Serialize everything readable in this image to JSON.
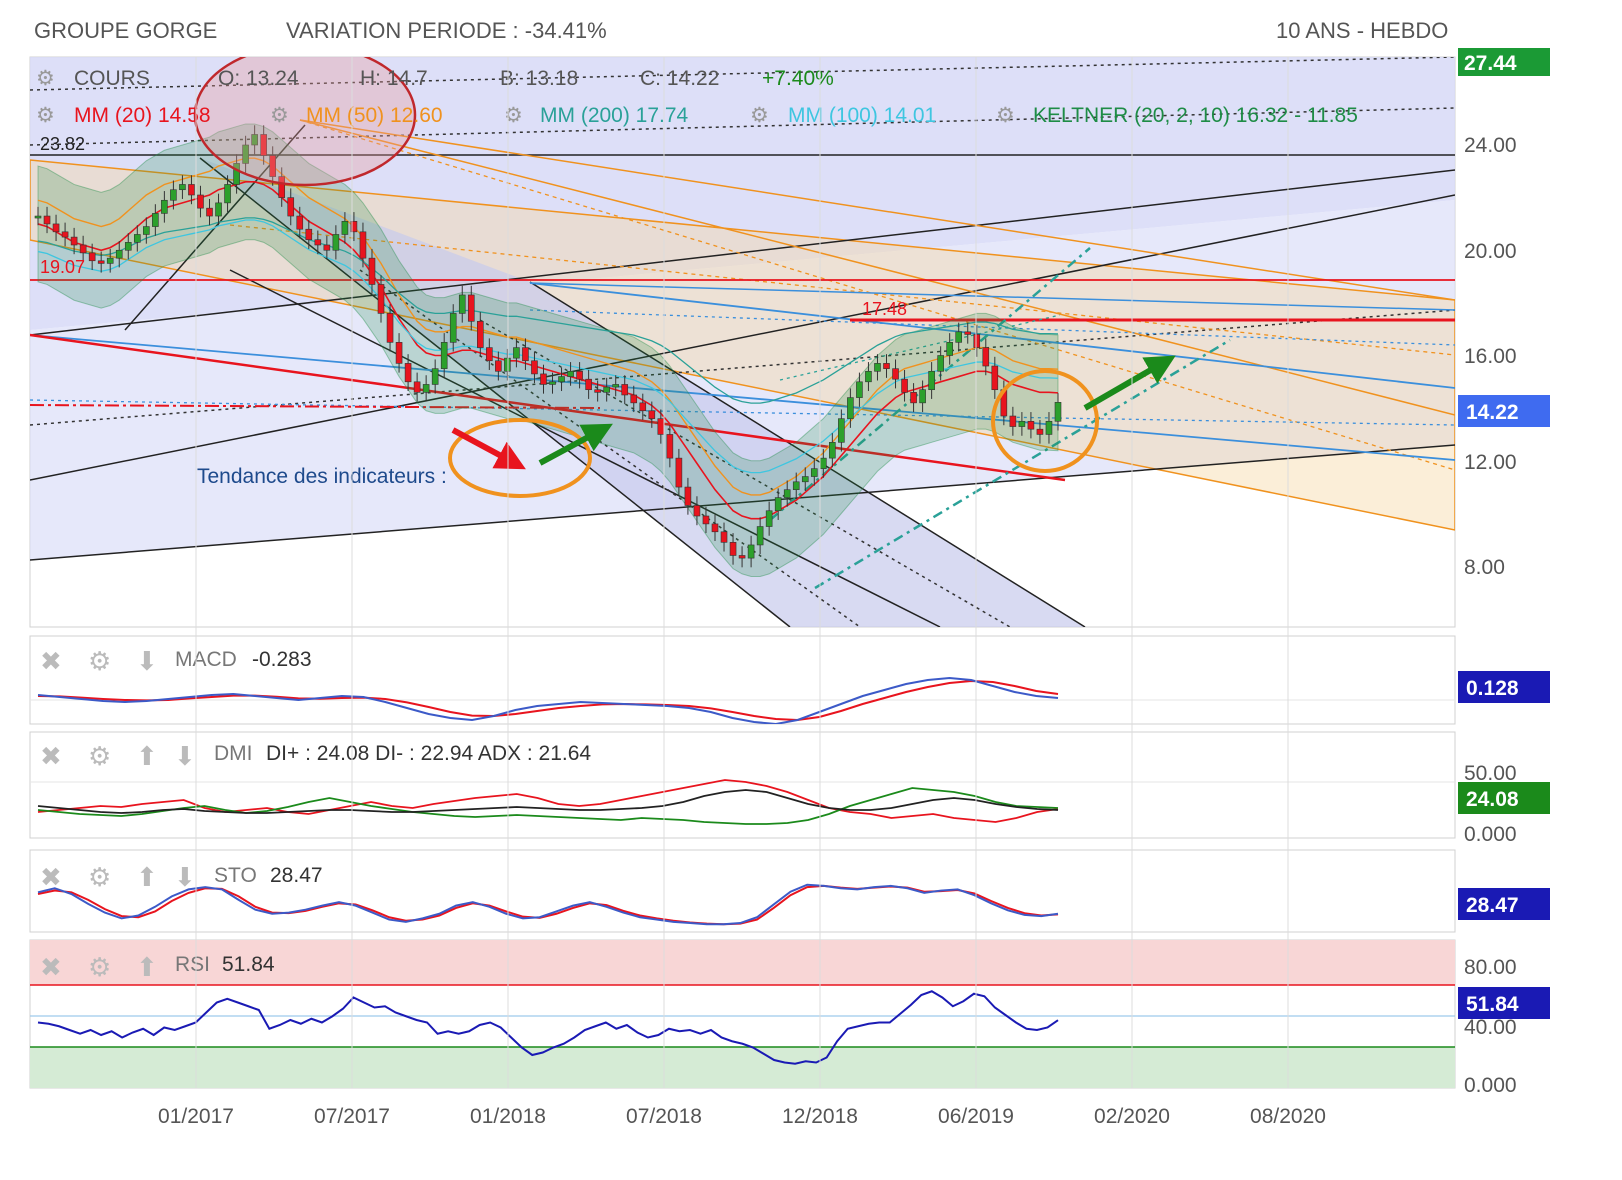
{
  "header": {
    "name": "GROUPE GORGE",
    "variation": "VARIATION PERIODE : -34.41%",
    "period": "10 ANS - HEBDO"
  },
  "colors": {
    "red": "#e8141e",
    "orange": "#f0921e",
    "teal": "#2aa198",
    "cyan": "#3ec6e0",
    "blue": "#3c5ac8",
    "green": "#1b8a1b",
    "keltner": "#1e8c46",
    "bgchannel": "#d7d9f7",
    "navy": "#1a1ab4"
  },
  "icons": [
    "gear-icon",
    "close-icon",
    "arrow-up-icon",
    "arrow-down-icon"
  ],
  "chart_data": {
    "type": "candlestick",
    "x_ticks": [
      "01/2017",
      "07/2017",
      "01/2018",
      "07/2018",
      "12/2018",
      "06/2019",
      "02/2020",
      "08/2020"
    ],
    "price_ticks": [
      "24.00",
      "20.00",
      "16.00",
      "12.00",
      "8.00"
    ],
    "price_axis_top": "27.44",
    "current_price": "14.22",
    "legend": {
      "cours": "COURS",
      "open": "O: 13.24",
      "high": "H: 14.7",
      "low": "B: 13.18",
      "close": "C: 14.22",
      "change": "+7.40%",
      "mm20": "MM (20) 14.58",
      "mm50": "MM (50) 12.60",
      "mm200": "MM (200) 17.74",
      "mm100": "MM (100) 14.01",
      "keltner": "KELTNER (20, 2, 10) 16.32 - 11.85"
    },
    "annotations": {
      "high_label": "23.82",
      "left_label": "19.07",
      "resistance": "17.48",
      "trend_text": "Tendance des indicateurs :"
    },
    "close_series": [
      21.3,
      21.0,
      20.7,
      20.5,
      20.2,
      19.9,
      19.6,
      19.5,
      19.7,
      20.0,
      20.3,
      20.6,
      20.9,
      21.4,
      21.9,
      22.3,
      22.5,
      22.1,
      21.6,
      21.3,
      21.8,
      22.5,
      23.3,
      24.0,
      24.4,
      23.6,
      22.8,
      22.0,
      21.3,
      20.8,
      20.4,
      20.2,
      20.0,
      20.6,
      21.1,
      20.7,
      19.7,
      18.7,
      17.6,
      16.5,
      15.7,
      15.0,
      14.6,
      14.9,
      15.5,
      16.5,
      17.6,
      18.3,
      17.3,
      16.3,
      15.8,
      15.4,
      15.9,
      16.3,
      15.8,
      15.3,
      14.9,
      15.0,
      15.2,
      15.4,
      15.1,
      14.7,
      14.6,
      14.8,
      14.9,
      14.5,
      14.2,
      13.9,
      13.6,
      13.0,
      12.1,
      11.0,
      10.3,
      9.9,
      9.6,
      9.3,
      8.9,
      8.4,
      8.3,
      8.8,
      9.5,
      10.1,
      10.6,
      10.9,
      11.2,
      11.4,
      11.7,
      12.1,
      12.7,
      13.6,
      14.4,
      15.0,
      15.4,
      15.7,
      15.5,
      15.1,
      14.6,
      14.2,
      14.7,
      15.4,
      16.0,
      16.5,
      16.9,
      16.8,
      16.3,
      15.6,
      14.7,
      13.7,
      13.3,
      13.5,
      13.2,
      13.0,
      13.5,
      14.22
    ],
    "mm20_series": [
      21.0,
      20.9,
      20.7,
      20.5,
      20.3,
      20.2,
      20.1,
      20.0,
      20.1,
      20.3,
      20.6,
      20.9,
      21.2,
      21.4,
      21.6,
      21.7,
      21.8,
      21.9,
      22.0,
      22.1,
      22.3,
      22.4,
      22.5,
      22.6,
      22.6,
      22.5,
      22.3,
      22.0,
      21.7,
      21.4,
      21.1,
      20.9,
      20.7,
      20.5,
      20.3,
      20.0,
      19.6,
      19.1,
      18.6,
      18.0,
      17.4,
      16.9,
      16.4,
      16.1,
      16.0,
      16.0,
      16.1,
      16.2,
      16.2,
      16.1,
      16.0,
      15.9,
      15.8,
      15.8,
      15.7,
      15.6,
      15.5,
      15.4,
      15.3,
      15.2,
      15.1,
      15.0,
      14.9,
      14.8,
      14.7,
      14.6,
      14.5,
      14.3,
      14.1,
      13.8,
      13.4,
      12.9,
      12.4,
      11.9,
      11.4,
      10.9,
      10.5,
      10.1,
      9.9,
      9.8,
      9.8,
      9.9,
      10.1,
      10.3,
      10.5,
      10.8,
      11.1,
      11.4,
      11.8,
      12.2,
      12.6,
      13.0,
      13.4,
      13.8,
      14.1,
      14.4,
      14.6,
      14.7,
      14.8,
      14.9,
      15.0,
      15.1,
      15.2,
      15.3,
      15.4,
      15.4,
      15.3,
      15.1,
      14.9,
      14.8,
      14.7,
      14.6,
      14.6,
      14.58
    ],
    "macd": {
      "name": "MACD",
      "value": "-0.283",
      "badge": "0.128",
      "macd_series": [
        0.25,
        0.15,
        0.05,
        -0.05,
        -0.1,
        -0.05,
        0.05,
        0.15,
        0.25,
        0.3,
        0.2,
        0.1,
        0.0,
        0.1,
        0.2,
        0.15,
        -0.1,
        -0.4,
        -0.7,
        -0.9,
        -1.0,
        -0.8,
        -0.5,
        -0.3,
        -0.2,
        -0.1,
        -0.15,
        -0.2,
        -0.25,
        -0.3,
        -0.4,
        -0.6,
        -0.9,
        -1.1,
        -1.2,
        -1.0,
        -0.6,
        -0.2,
        0.2,
        0.5,
        0.8,
        1.0,
        1.1,
        1.0,
        0.7,
        0.4,
        0.2,
        0.1
      ],
      "signal_series": [
        0.2,
        0.18,
        0.12,
        0.05,
        0.0,
        -0.02,
        0.0,
        0.08,
        0.15,
        0.22,
        0.22,
        0.16,
        0.08,
        0.06,
        0.1,
        0.12,
        0.05,
        -0.12,
        -0.35,
        -0.6,
        -0.78,
        -0.8,
        -0.7,
        -0.55,
        -0.4,
        -0.3,
        -0.22,
        -0.2,
        -0.22,
        -0.25,
        -0.3,
        -0.42,
        -0.6,
        -0.8,
        -0.95,
        -1.0,
        -0.85,
        -0.55,
        -0.2,
        0.1,
        0.4,
        0.65,
        0.85,
        0.95,
        0.9,
        0.7,
        0.45,
        0.3
      ]
    },
    "dmi": {
      "name": "DMI",
      "values": "DI+ : 24.08 DI- : 22.94 ADX : 21.64",
      "badge": "24.08",
      "ticks": [
        "50.00",
        "0.000"
      ],
      "diplus_series": [
        22,
        20,
        18,
        17,
        16,
        18,
        21,
        24,
        26,
        22,
        19,
        21,
        25,
        30,
        34,
        30,
        26,
        23,
        20,
        18,
        16,
        15,
        16,
        17,
        16,
        15,
        14,
        13,
        12,
        14,
        13,
        12,
        10,
        9,
        8,
        8,
        9,
        12,
        18,
        26,
        32,
        38,
        44,
        42,
        40,
        36,
        30,
        26,
        25,
        24
      ],
      "diminus_series": [
        20,
        22,
        24,
        26,
        25,
        28,
        30,
        32,
        24,
        20,
        22,
        24,
        20,
        18,
        22,
        26,
        30,
        26,
        24,
        28,
        31,
        34,
        36,
        38,
        34,
        28,
        26,
        28,
        32,
        36,
        40,
        44,
        48,
        52,
        50,
        46,
        40,
        32,
        24,
        20,
        18,
        14,
        16,
        18,
        14,
        12,
        10,
        14,
        20,
        23
      ],
      "adx_series": [
        26,
        24,
        22,
        20,
        19,
        20,
        22,
        23,
        21,
        20,
        19,
        19,
        20,
        21,
        22,
        22,
        21,
        20,
        20,
        21,
        22,
        23,
        24,
        25,
        24,
        23,
        22,
        22,
        23,
        24,
        26,
        30,
        36,
        40,
        42,
        40,
        34,
        28,
        24,
        22,
        22,
        24,
        28,
        32,
        34,
        32,
        28,
        25,
        23,
        22
      ]
    },
    "sto": {
      "name": "STO",
      "value": "28.47",
      "badge": "28.47",
      "k_series": [
        65,
        72,
        62,
        45,
        30,
        20,
        25,
        40,
        58,
        70,
        74,
        70,
        52,
        35,
        28,
        30,
        35,
        42,
        48,
        42,
        30,
        18,
        14,
        20,
        28,
        42,
        48,
        40,
        28,
        20,
        22,
        32,
        42,
        48,
        40,
        30,
        22,
        18,
        14,
        12,
        10,
        10,
        12,
        22,
        44,
        66,
        78,
        76,
        72,
        70,
        74,
        76,
        72,
        64,
        68,
        70,
        60,
        46,
        34,
        26,
        24,
        28
      ],
      "d_series": [
        62,
        68,
        65,
        52,
        36,
        24,
        22,
        32,
        50,
        64,
        72,
        71,
        58,
        40,
        30,
        29,
        33,
        40,
        46,
        44,
        34,
        22,
        16,
        18,
        25,
        38,
        46,
        42,
        32,
        23,
        21,
        28,
        38,
        46,
        43,
        33,
        25,
        20,
        16,
        13,
        11,
        10,
        11,
        18,
        38,
        60,
        74,
        76,
        73,
        71,
        73,
        75,
        73,
        66,
        67,
        69,
        63,
        50,
        38,
        29,
        25,
        27
      ]
    },
    "rsi": {
      "name": "RSI",
      "value": "51.84",
      "badge": "51.84",
      "ticks": [
        "80.00",
        "40.00",
        "0.000"
      ],
      "series": [
        50,
        49,
        47,
        44,
        41,
        44,
        40,
        43,
        38,
        42,
        45,
        40,
        46,
        44,
        47,
        50,
        58,
        66,
        69,
        66,
        63,
        60,
        45,
        48,
        52,
        49,
        53,
        50,
        55,
        61,
        70,
        66,
        62,
        63,
        58,
        55,
        52,
        50,
        41,
        43,
        41,
        43,
        48,
        50,
        46,
        38,
        30,
        24,
        26,
        30,
        33,
        38,
        44,
        47,
        50,
        45,
        48,
        42,
        38,
        40,
        45,
        43,
        44,
        41,
        44,
        38,
        35,
        33,
        30,
        25,
        20,
        18,
        17,
        19,
        18,
        22,
        35,
        45,
        47,
        49,
        50,
        50,
        57,
        64,
        72,
        75,
        70,
        63,
        67,
        73,
        71,
        62,
        56,
        50,
        45,
        44,
        46,
        51.84
      ]
    }
  }
}
